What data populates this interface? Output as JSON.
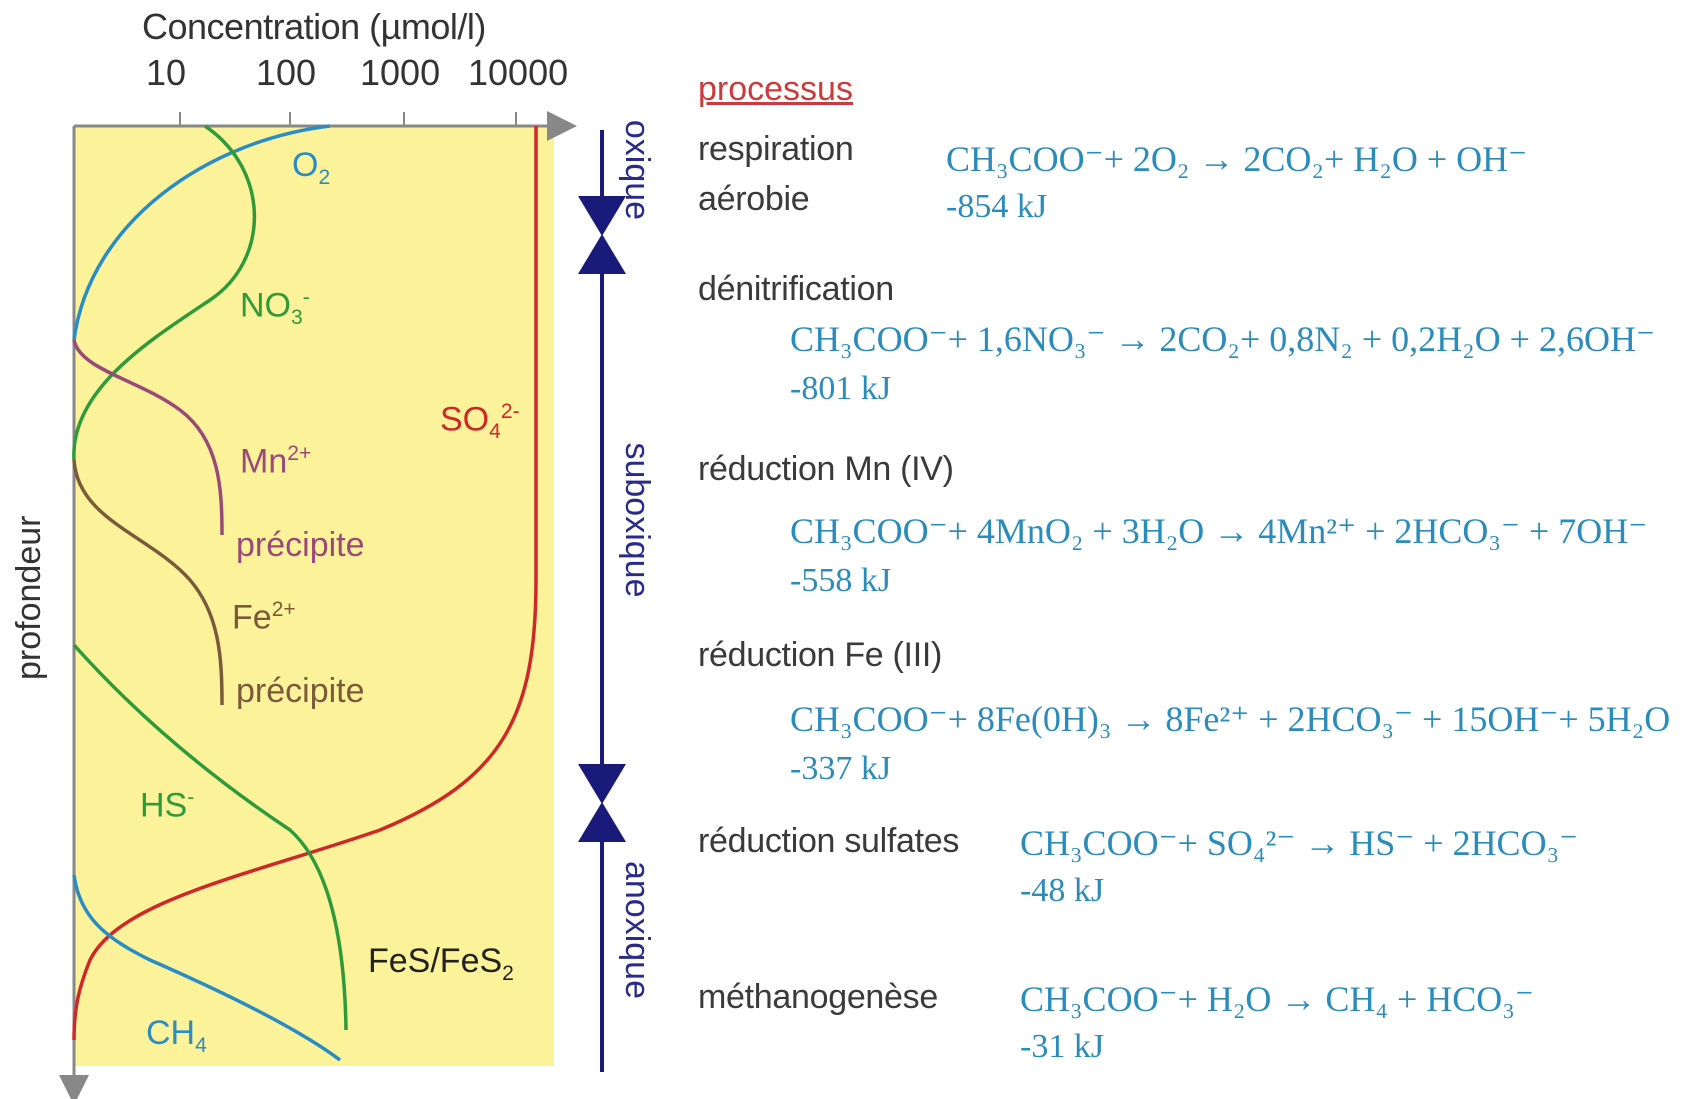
{
  "axis": {
    "title": "Concentration (µmol/l)",
    "ticks": [
      "10",
      "100",
      "1000",
      "10000"
    ],
    "depth_label": "profondeur"
  },
  "zones": {
    "oxic": "oxique",
    "suboxic": "suboxique",
    "anoxic": "anoxique"
  },
  "species": {
    "o2": {
      "label": "O",
      "sub": "2"
    },
    "no3": {
      "label": "NO",
      "sub": "3",
      "sup": "-"
    },
    "mn": {
      "label": "Mn",
      "sup": "2+"
    },
    "mn_prec": "précipite",
    "fe": {
      "label": "Fe",
      "sup": "2+"
    },
    "fe_prec": "précipite",
    "so4": {
      "label": "SO",
      "sub": "4",
      "sup": "2-"
    },
    "hs": {
      "label": "HS",
      "sup": "-"
    },
    "fes": {
      "label": "FeS/FeS",
      "sub": "2"
    },
    "ch4": {
      "label": "CH",
      "sub": "4"
    }
  },
  "colors": {
    "panel": "#fbf29a",
    "o2": "#2a8cc4",
    "no3": "#2f9a3a",
    "mn": "#9a4a78",
    "fe": "#7a5a3a",
    "so4": "#d02828",
    "hs": "#2f9a3a",
    "ch4": "#2a8cc4",
    "zone_arrow": "#1a1a7a",
    "axis": "#888888"
  },
  "processes_header": "processus",
  "processes": [
    {
      "name_lines": [
        "respiration",
        "aérobie"
      ],
      "equation": "CH₃COO⁻+ 2O₂ → 2CO₂+ H₂O + OH⁻",
      "energy": "-854 kJ"
    },
    {
      "name_lines": [
        "dénitrification"
      ],
      "equation": "CH₃COO⁻+ 1,6NO₃⁻ → 2CO₂+ 0,8N₂ + 0,2H₂O + 2,6OH⁻",
      "energy": "-801 kJ"
    },
    {
      "name_lines": [
        "réduction Mn (IV)"
      ],
      "equation": "CH₃COO⁻+ 4MnO₂ + 3H₂O → 4Mn²⁺ + 2HCO₃⁻ + 7OH⁻",
      "energy": "-558 kJ"
    },
    {
      "name_lines": [
        "réduction Fe (III)"
      ],
      "equation": "CH₃COO⁻+ 8Fe(0H)₃ → 8Fe²⁺ + 2HCO₃⁻ + 15OH⁻+ 5H₂O",
      "energy": "-337 kJ"
    },
    {
      "name_lines": [
        "réduction sulfates"
      ],
      "equation": "CH₃COO⁻+ SO₄²⁻ → HS⁻ + 2HCO₃⁻",
      "energy": "-48 kJ"
    },
    {
      "name_lines": [
        "méthanogenèse"
      ],
      "equation": "CH₃COO⁻+ H₂O → CH₄ + HCO₃⁻",
      "energy": "-31 kJ"
    }
  ]
}
